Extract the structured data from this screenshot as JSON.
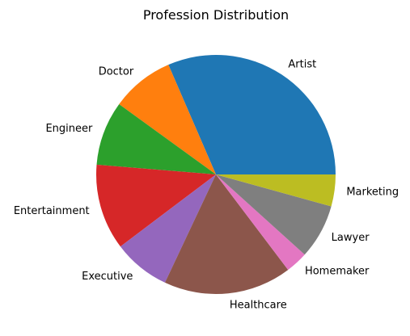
{
  "chart_data": {
    "type": "pie",
    "title": "Profession Distribution",
    "start_angle_deg": 0,
    "direction": "counterclockwise",
    "slices": [
      {
        "label": "Artist",
        "value": 31.5,
        "color": "#1f77b4"
      },
      {
        "label": "Doctor",
        "value": 8.5,
        "color": "#ff7f0e"
      },
      {
        "label": "Engineer",
        "value": 8.7,
        "color": "#2ca02c"
      },
      {
        "label": "Entertainment",
        "value": 11.6,
        "color": "#d62728"
      },
      {
        "label": "Executive",
        "value": 7.7,
        "color": "#9467bd"
      },
      {
        "label": "Healthcare",
        "value": 17.3,
        "color": "#8c564b"
      },
      {
        "label": "Homemaker",
        "value": 3.0,
        "color": "#e377c2"
      },
      {
        "label": "Lawyer",
        "value": 7.4,
        "color": "#7f7f7f"
      },
      {
        "label": "Marketing",
        "value": 4.3,
        "color": "#bcbd22"
      }
    ]
  }
}
